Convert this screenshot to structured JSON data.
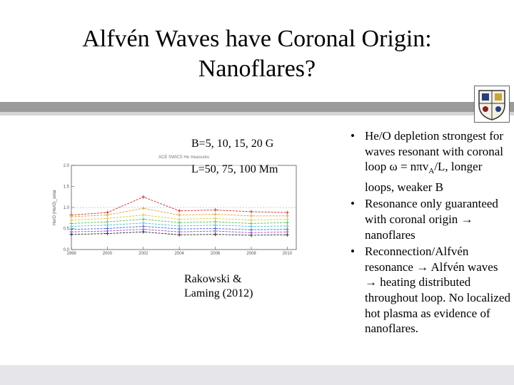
{
  "slide": {
    "title_line1": "Alfvén Waves have Coronal Origin:",
    "title_line2": "Nanoflares?"
  },
  "figure": {
    "caption_b": "B=5, 10, 15, 20 G",
    "caption_l": "L=50, 75, 100 Mm",
    "citation_line1": "Rakowski &",
    "citation_line2": "Laming (2012)"
  },
  "bullets": {
    "b1_a": "He/O depletion strongest for waves resonant with coronal loop ",
    "b1_omega": "ω",
    "b1_b": " = n",
    "b1_pi": "π",
    "b1_v": "v",
    "b1_sub": "A",
    "b1_c": "/L, longer loops, weaker B",
    "b2_a": "Resonance only guaranteed with coronal origin ",
    "b2_arrow": "→",
    "b2_b": " nanoflares",
    "b3_a": "Reconnection/Alfvén resonance ",
    "b3_arrow1": "→",
    "b3_b": " Alfvén waves ",
    "b3_arrow2": "→",
    "b3_c": " heating distributed throughout loop. No localized hot plasma as evidence of nanoflares."
  },
  "chart_data": {
    "type": "line",
    "title": "ACE SWICS He measures",
    "ylabel": "He/O (He/O)_solar",
    "xlabel": "",
    "x": [
      1998,
      2000,
      2002,
      2004,
      2006,
      2008,
      2010
    ],
    "xticks": [
      "1998",
      "2000",
      "2002",
      "2004",
      "2006",
      "2008",
      "2010"
    ],
    "yticks": [
      "0.0",
      "0.5",
      "1.0",
      "1.5",
      "2.0"
    ],
    "ylim": [
      0,
      2
    ],
    "xlim": [
      1998,
      2010.5
    ],
    "series": [
      {
        "name": "s1",
        "color": "#cc2a2a",
        "values": [
          0.82,
          0.88,
          1.25,
          0.92,
          0.94,
          0.9,
          0.88
        ]
      },
      {
        "name": "s2",
        "color": "#e0a030",
        "values": [
          0.78,
          0.82,
          0.98,
          0.82,
          0.84,
          0.8,
          0.8
        ]
      },
      {
        "name": "s3",
        "color": "#d8c840",
        "values": [
          0.7,
          0.74,
          0.82,
          0.72,
          0.74,
          0.7,
          0.72
        ]
      },
      {
        "name": "s4",
        "color": "#50c050",
        "values": [
          0.62,
          0.66,
          0.72,
          0.64,
          0.66,
          0.62,
          0.64
        ]
      },
      {
        "name": "s5",
        "color": "#40c0d0",
        "values": [
          0.55,
          0.58,
          0.63,
          0.56,
          0.58,
          0.55,
          0.56
        ]
      },
      {
        "name": "s6",
        "color": "#4060e0",
        "values": [
          0.48,
          0.5,
          0.55,
          0.49,
          0.5,
          0.47,
          0.48
        ]
      },
      {
        "name": "s7",
        "color": "#a040c0",
        "values": [
          0.42,
          0.44,
          0.48,
          0.42,
          0.44,
          0.4,
          0.42
        ]
      },
      {
        "name": "s8",
        "color": "#222222",
        "values": [
          0.36,
          0.38,
          0.42,
          0.35,
          0.36,
          0.34,
          0.35
        ]
      }
    ]
  }
}
